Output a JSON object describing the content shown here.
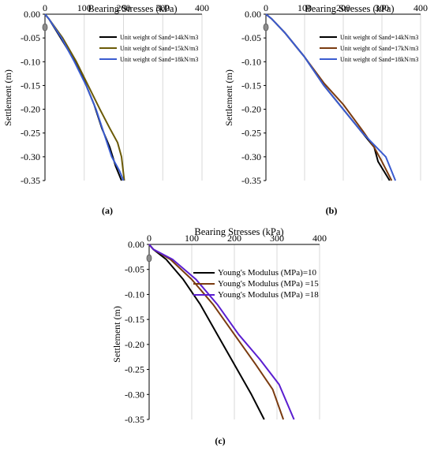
{
  "colors": {
    "black": "#000000",
    "brown": "#7a3b10",
    "olive": "#6b5a06",
    "blue": "#3a5bd0",
    "purple": "#5a1ed0",
    "grid": "#d9d9d9"
  },
  "chart_data": [
    {
      "panel_label": "(a)",
      "type": "line",
      "title": "Bearing Stresses (kPa)",
      "xlabel": "Bearing Stresses (kPa)",
      "ylabel": "Settlement (m)",
      "xlim": [
        0,
        400
      ],
      "ylim": [
        -0.35,
        0
      ],
      "x_ticks": [
        "0",
        "100",
        "200",
        "300",
        "400"
      ],
      "y_ticks": [
        "0.00",
        "-0.05",
        "-0.10",
        "-0.15",
        "-0.20",
        "-0.25",
        "-0.30",
        "-0.35"
      ],
      "x_tick_values": [
        0,
        100,
        200,
        300,
        400
      ],
      "y_tick_values": [
        0,
        -0.05,
        -0.1,
        -0.15,
        -0.2,
        -0.25,
        -0.3,
        -0.35
      ],
      "grid": "vertical",
      "legend_position": "top-right",
      "series": [
        {
          "name": "Unit weight of Sand=14kN/m3",
          "color": "#000000",
          "points": [
            [
              0,
              0
            ],
            [
              10,
              -0.01
            ],
            [
              40,
              -0.05
            ],
            [
              70,
              -0.09
            ],
            [
              100,
              -0.14
            ],
            [
              125,
              -0.19
            ],
            [
              145,
              -0.24
            ],
            [
              165,
              -0.28
            ],
            [
              180,
              -0.32
            ],
            [
              195,
              -0.35
            ]
          ]
        },
        {
          "name": "Unit weight of Sand=15kN/m3",
          "color": "#6b5a06",
          "points": [
            [
              0,
              0
            ],
            [
              10,
              -0.01
            ],
            [
              45,
              -0.05
            ],
            [
              80,
              -0.1
            ],
            [
              110,
              -0.15
            ],
            [
              140,
              -0.2
            ],
            [
              165,
              -0.24
            ],
            [
              185,
              -0.27
            ],
            [
              195,
              -0.3
            ],
            [
              202,
              -0.35
            ]
          ]
        },
        {
          "name": "Unit weight of Sand=18kN/m3",
          "color": "#3a5bd0",
          "points": [
            [
              0,
              0
            ],
            [
              10,
              -0.01
            ],
            [
              42,
              -0.05
            ],
            [
              75,
              -0.1
            ],
            [
              105,
              -0.15
            ],
            [
              130,
              -0.2
            ],
            [
              150,
              -0.25
            ],
            [
              170,
              -0.3
            ],
            [
              190,
              -0.33
            ],
            [
              200,
              -0.35
            ]
          ]
        }
      ]
    },
    {
      "panel_label": "(b)",
      "type": "line",
      "title": "Bearing Stresses (kPa)",
      "xlabel": "Bearing Stresses (kPa)",
      "ylabel": "Settlement (m)",
      "xlim": [
        0,
        400
      ],
      "ylim": [
        -0.35,
        0
      ],
      "x_ticks": [
        "0",
        "100",
        "200",
        "300",
        "400"
      ],
      "y_ticks": [
        "0.00",
        "-0.05",
        "-0.10",
        "-0.15",
        "-0.20",
        "-0.25",
        "-0.30",
        "-0.35"
      ],
      "x_tick_values": [
        0,
        100,
        200,
        300,
        400
      ],
      "y_tick_values": [
        0,
        -0.05,
        -0.1,
        -0.15,
        -0.2,
        -0.25,
        -0.3,
        -0.35
      ],
      "grid": "vertical",
      "legend_position": "top-right",
      "series": [
        {
          "name": "Unit weight of Sand=14kN/m3",
          "color": "#000000",
          "points": [
            [
              0,
              0
            ],
            [
              15,
              -0.01
            ],
            [
              50,
              -0.04
            ],
            [
              100,
              -0.09
            ],
            [
              150,
              -0.15
            ],
            [
              200,
              -0.2
            ],
            [
              250,
              -0.25
            ],
            [
              280,
              -0.28
            ],
            [
              290,
              -0.31
            ],
            [
              320,
              -0.35
            ]
          ]
        },
        {
          "name": "Unit weight of Sand=17kN/m3",
          "color": "#7a3b10",
          "points": [
            [
              0,
              0
            ],
            [
              15,
              -0.01
            ],
            [
              50,
              -0.04
            ],
            [
              100,
              -0.09
            ],
            [
              150,
              -0.145
            ],
            [
              200,
              -0.19
            ],
            [
              250,
              -0.245
            ],
            [
              280,
              -0.28
            ],
            [
              300,
              -0.31
            ],
            [
              325,
              -0.35
            ]
          ]
        },
        {
          "name": "Unit weight of Sand=18kN/m3",
          "color": "#3a5bd0",
          "points": [
            [
              0,
              0
            ],
            [
              15,
              -0.01
            ],
            [
              50,
              -0.04
            ],
            [
              100,
              -0.09
            ],
            [
              150,
              -0.15
            ],
            [
              200,
              -0.2
            ],
            [
              250,
              -0.25
            ],
            [
              280,
              -0.275
            ],
            [
              310,
              -0.3
            ],
            [
              335,
              -0.35
            ]
          ]
        }
      ]
    },
    {
      "panel_label": "(c)",
      "type": "line",
      "title": "Bearing Stresses (kPa)",
      "xlabel": "Bearing Stresses (kPa)",
      "ylabel": "Settlement (m)",
      "xlim": [
        0,
        400
      ],
      "ylim": [
        -0.35,
        0
      ],
      "x_ticks": [
        "0",
        "100",
        "200",
        "300",
        "400"
      ],
      "y_ticks": [
        "0.00",
        "-0.05",
        "-0.10",
        "-0.15",
        "-0.20",
        "-0.25",
        "-0.30",
        "-0.35"
      ],
      "x_tick_values": [
        0,
        100,
        200,
        300,
        400
      ],
      "y_tick_values": [
        0,
        -0.05,
        -0.1,
        -0.15,
        -0.2,
        -0.25,
        -0.3,
        -0.35
      ],
      "grid": "vertical",
      "legend_position": "top-right",
      "series": [
        {
          "name": "Young's Modulus (MPa)=10",
          "color": "#000000",
          "points": [
            [
              0,
              0
            ],
            [
              10,
              -0.01
            ],
            [
              40,
              -0.03
            ],
            [
              80,
              -0.07
            ],
            [
              120,
              -0.12
            ],
            [
              160,
              -0.18
            ],
            [
              200,
              -0.24
            ],
            [
              240,
              -0.3
            ],
            [
              270,
              -0.35
            ]
          ]
        },
        {
          "name": "Young's Modulus (MPa) =15",
          "color": "#7a3b10",
          "points": [
            [
              0,
              0
            ],
            [
              10,
              -0.01
            ],
            [
              50,
              -0.03
            ],
            [
              100,
              -0.07
            ],
            [
              150,
              -0.12
            ],
            [
              200,
              -0.18
            ],
            [
              250,
              -0.24
            ],
            [
              290,
              -0.29
            ],
            [
              315,
              -0.35
            ]
          ]
        },
        {
          "name": "Young's Modulus (MPa) =18",
          "color": "#5a1ed0",
          "points": [
            [
              0,
              0
            ],
            [
              10,
              -0.01
            ],
            [
              55,
              -0.03
            ],
            [
              110,
              -0.07
            ],
            [
              160,
              -0.12
            ],
            [
              210,
              -0.18
            ],
            [
              260,
              -0.23
            ],
            [
              305,
              -0.28
            ],
            [
              340,
              -0.35
            ]
          ]
        }
      ]
    }
  ]
}
